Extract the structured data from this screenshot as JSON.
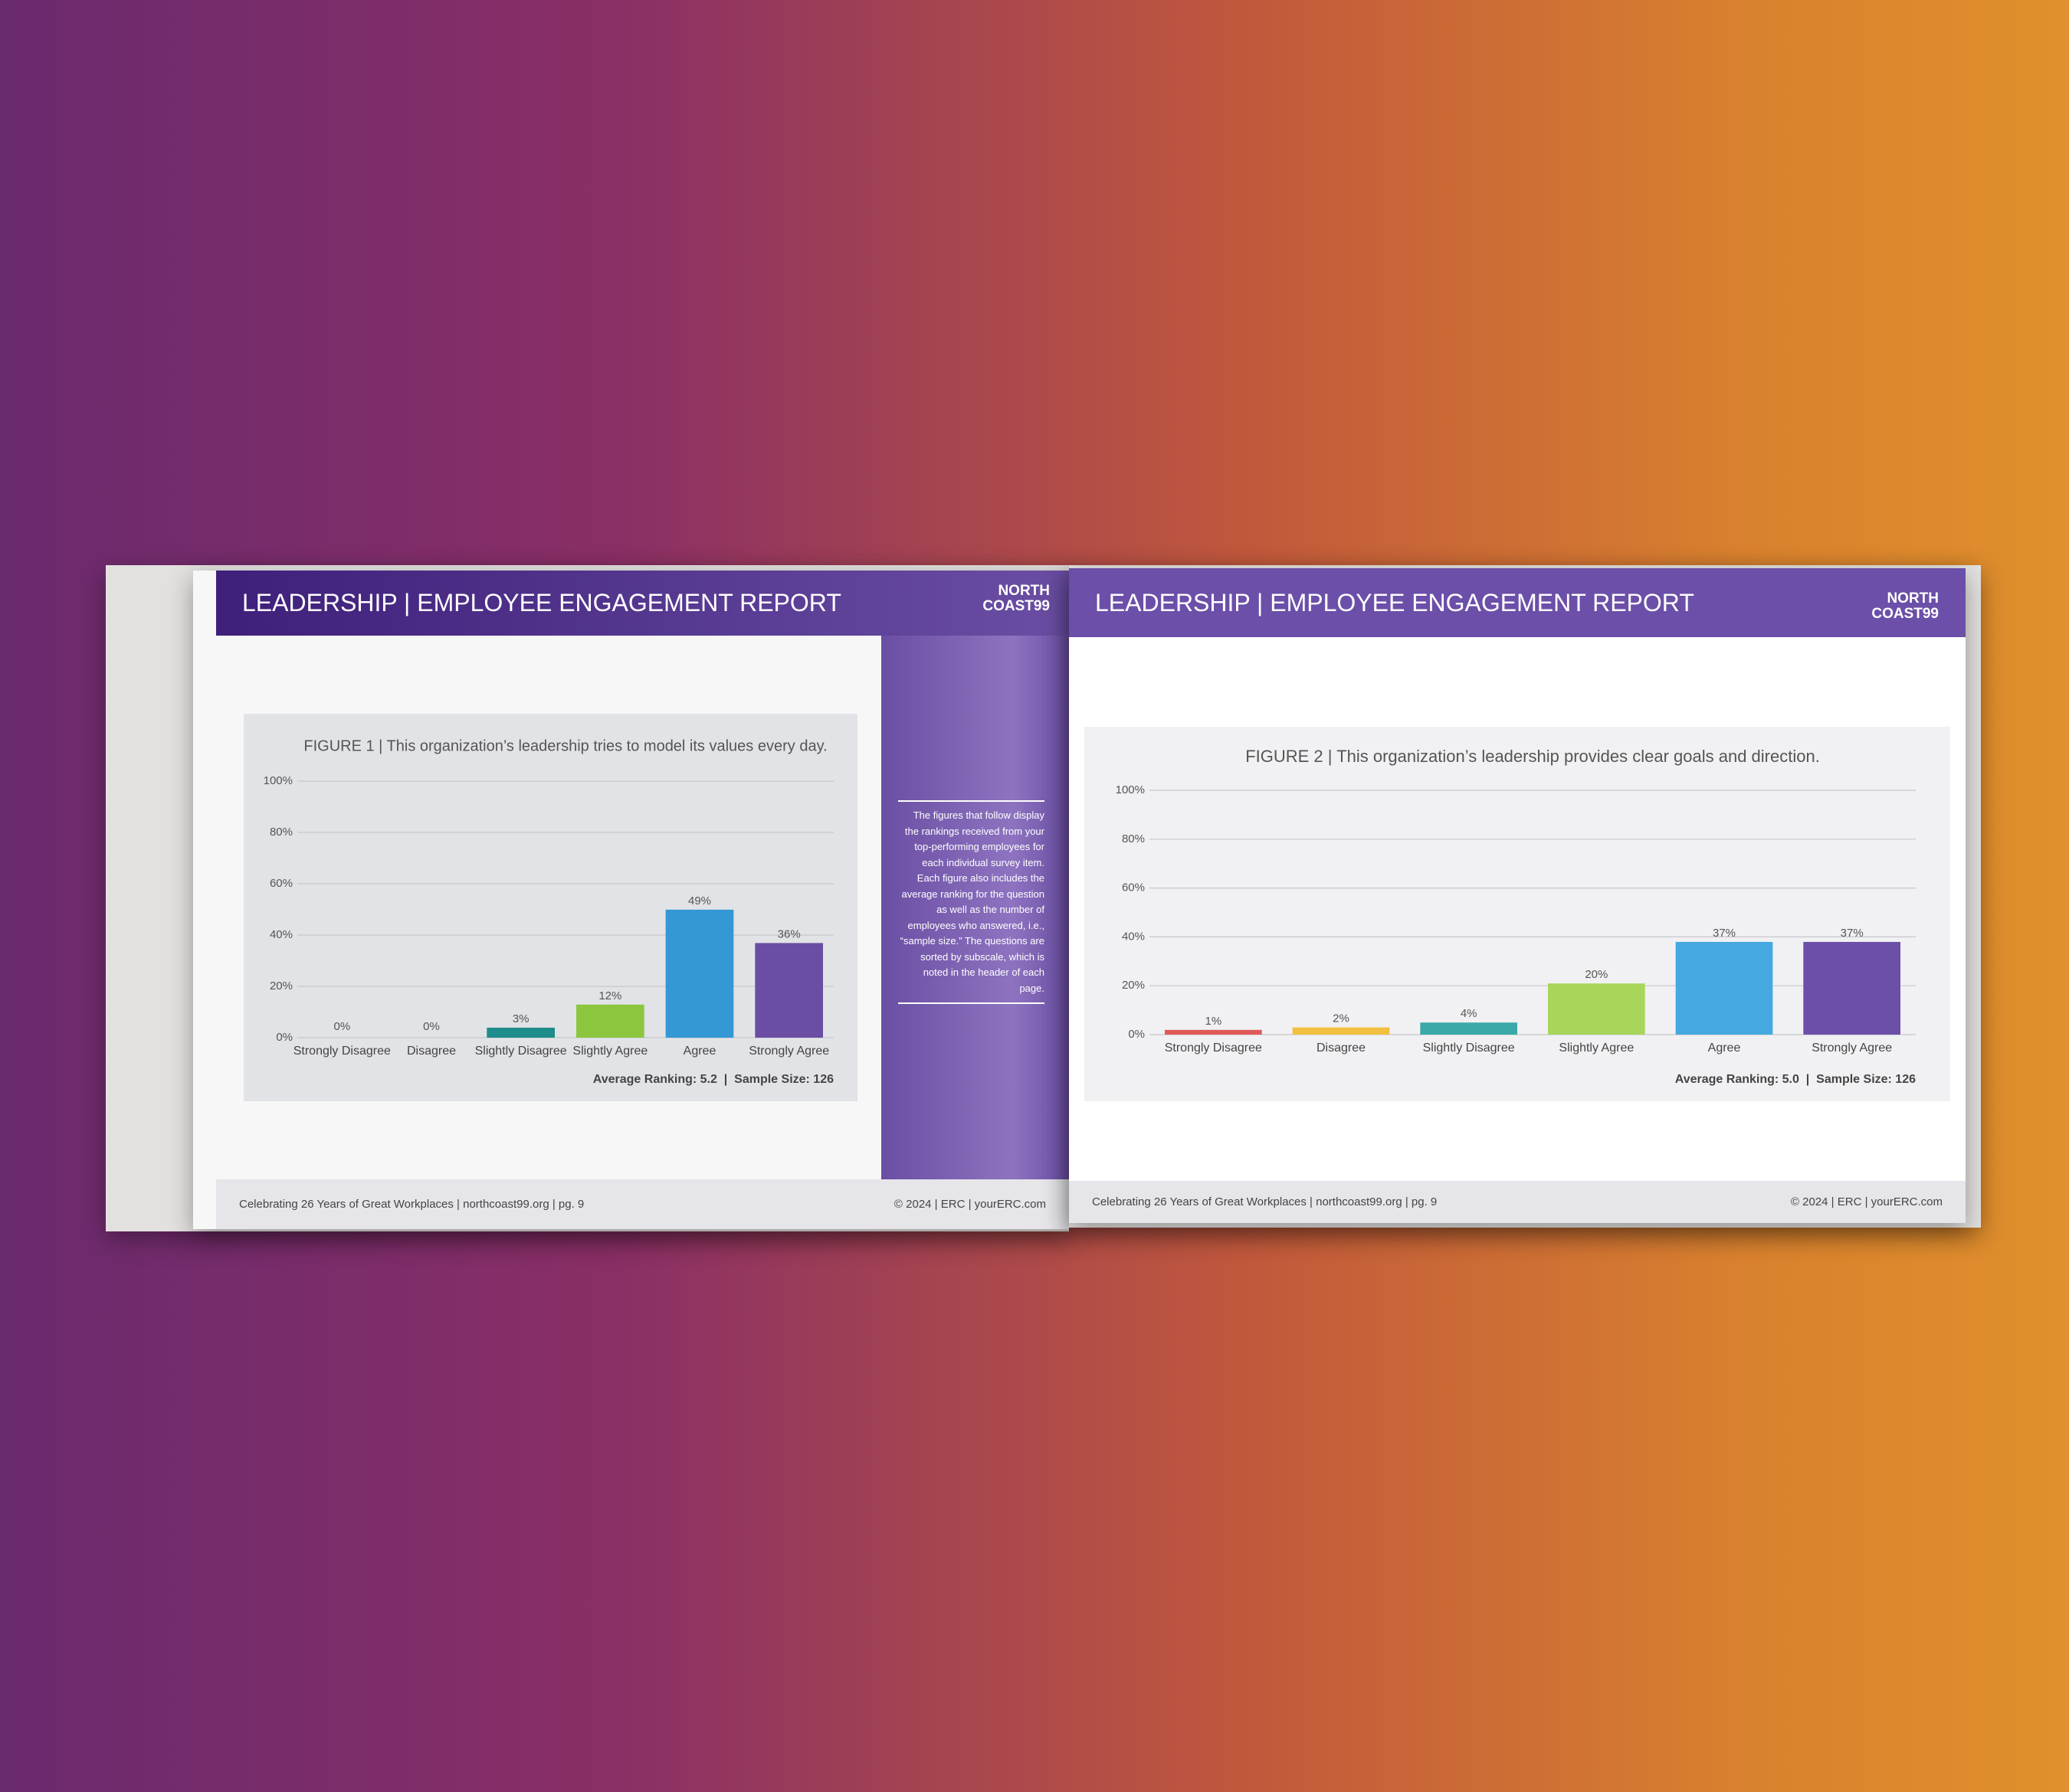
{
  "pages": [
    {
      "header": "LEADERSHIP | EMPLOYEE ENGAGEMENT REPORT",
      "logo": [
        "NORTH",
        "COAST99"
      ],
      "footer_left": "Celebrating 26 Years of Great Workplaces | northcoast99.org | pg. 9",
      "footer_right": "© 2024 | ERC | yourERC.com"
    },
    {
      "header": "LEADERSHIP | EMPLOYEE ENGAGEMENT REPORT",
      "logo": [
        "NORTH",
        "COAST99"
      ],
      "footer_left": "Celebrating 26 Years of Great Workplaces | northcoast99.org | pg. 9",
      "footer_right": "© 2024 | ERC | yourERC.com"
    }
  ],
  "sidebar": "The figures that follow display the rankings received from your top-performing employees for each individual survey item. Each figure also includes the average ranking for the question as well as the number of employees who answered, i.e., “sample size.” The questions are sorted by subscale, which is noted in the header of each page.",
  "chart_data": [
    {
      "type": "bar",
      "title": "FIGURE 1 | This organization’s leadership tries to model its values every day.",
      "categories": [
        "Strongly Disagree",
        "Disagree",
        "Slightly Disagree",
        "Slightly Agree",
        "Agree",
        "Strongly Agree"
      ],
      "values": [
        0,
        0,
        3,
        12,
        49,
        36
      ],
      "value_labels": [
        "0%",
        "0%",
        "3%",
        "12%",
        "49%",
        "36%"
      ],
      "colors": [
        "#e05a5a",
        "#f2c040",
        "#1d8c8a",
        "#8cc63f",
        "#3398d3",
        "#6a4ea3"
      ],
      "ylim": [
        0,
        100
      ],
      "yticks": [
        {
          "value": 0,
          "label": "0%"
        },
        {
          "value": 20,
          "label": "20%"
        },
        {
          "value": 40,
          "label": "40%"
        },
        {
          "value": 60,
          "label": "60%"
        },
        {
          "value": 80,
          "label": "80%"
        },
        {
          "value": 100,
          "label": "100%"
        }
      ],
      "grid": true,
      "note": "Average Ranking: 5.2  |  Sample Size: 126"
    },
    {
      "type": "bar",
      "title": "FIGURE 2 | This organization’s leadership provides clear goals and direction.",
      "categories": [
        "Strongly Disagree",
        "Disagree",
        "Slightly Disagree",
        "Slightly Agree",
        "Agree",
        "Strongly Agree"
      ],
      "values": [
        1,
        2,
        4,
        20,
        37,
        37
      ],
      "value_labels": [
        "1%",
        "2%",
        "4%",
        "20%",
        "37%",
        "37%"
      ],
      "colors": [
        "#e05a5a",
        "#f2c040",
        "#3aa9a8",
        "#a8d65a",
        "#45a8e0",
        "#6b4fa8"
      ],
      "ylim": [
        0,
        100
      ],
      "yticks": [
        {
          "value": 0,
          "label": "0%"
        },
        {
          "value": 20,
          "label": "20%"
        },
        {
          "value": 40,
          "label": "40%"
        },
        {
          "value": 60,
          "label": "60%"
        },
        {
          "value": 80,
          "label": "80%"
        },
        {
          "value": 100,
          "label": "100%"
        }
      ],
      "grid": true,
      "note": "Average Ranking: 5.0  |  Sample Size: 126"
    }
  ]
}
